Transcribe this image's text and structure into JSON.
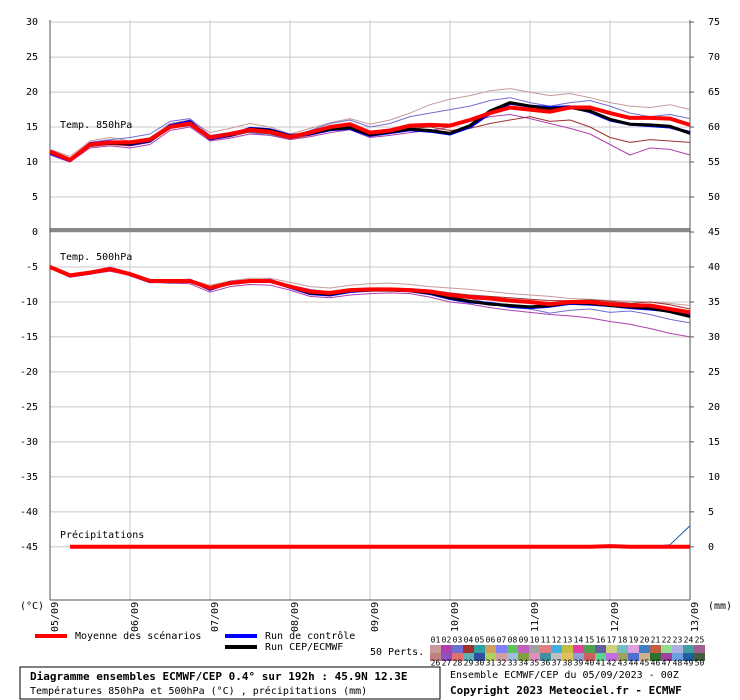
{
  "chart_data": {
    "type": "line",
    "title": "Diagramme ensembles ECMWF/CEP 0.4° sur 192h : 45.9N 12.3E",
    "subtitle": "Températures 850hPa et 500hPa (°C) , précipitations (mm)",
    "run_info": "Ensemble ECMWF/CEP du 05/09/2023 - 00Z",
    "copyright": "Copyright 2023 Meteociel.fr - ECMWF",
    "ylabel": "(°C)",
    "y2label": "(mm)",
    "grid": true,
    "x": [
      0,
      6,
      12,
      18,
      24,
      30,
      36,
      42,
      48,
      54,
      60,
      66,
      72,
      78,
      84,
      90,
      96,
      102,
      108,
      114,
      120,
      126,
      132,
      138,
      144,
      150,
      156,
      162,
      168,
      174,
      180,
      186,
      192
    ],
    "xlim": [
      0,
      192
    ],
    "xticks": [
      {
        "value": 0,
        "label": "05/09"
      },
      {
        "value": 24,
        "label": "06/09"
      },
      {
        "value": 48,
        "label": "07/09"
      },
      {
        "value": 72,
        "label": "08/09"
      },
      {
        "value": 96,
        "label": "09/09"
      },
      {
        "value": 120,
        "label": "10/09"
      },
      {
        "value": 144,
        "label": "11/09"
      },
      {
        "value": 168,
        "label": "12/09"
      },
      {
        "value": 192,
        "label": "13/09"
      }
    ],
    "ylim": [
      -52.6,
      30.3
    ],
    "yticks": [
      30,
      25,
      20,
      15,
      10,
      5,
      0,
      -5,
      -10,
      -15,
      -20,
      -25,
      -30,
      -35,
      -40,
      -45
    ],
    "y2lim": [
      -7.6,
      75.3
    ],
    "y2ticks": [
      75,
      70,
      65,
      60,
      55,
      50,
      45,
      40,
      35,
      30,
      25,
      20,
      15,
      10,
      5,
      0
    ],
    "legend": [
      {
        "name": "Moyenne des scénarios",
        "color": "#ff0000"
      },
      {
        "name": "Run de contrôle",
        "color": "#0000ff"
      },
      {
        "name": "Run CEP/ECMWF",
        "color": "#000000"
      }
    ],
    "perturbation_legend": {
      "label": "50 Perts.",
      "items": [
        {
          "name": "01",
          "color": "#c89a9a"
        },
        {
          "name": "02",
          "color": "#b040b0"
        },
        {
          "name": "03",
          "color": "#7070d0"
        },
        {
          "name": "04",
          "color": "#a03030"
        },
        {
          "name": "05",
          "color": "#30a0a0"
        },
        {
          "name": "06",
          "color": "#d0a060"
        },
        {
          "name": "07",
          "color": "#8080ff"
        },
        {
          "name": "08",
          "color": "#60c060"
        },
        {
          "name": "09",
          "color": "#c060c0"
        },
        {
          "name": "10",
          "color": "#a0a0a0"
        },
        {
          "name": "11",
          "color": "#e08080"
        },
        {
          "name": "12",
          "color": "#40b0e0"
        },
        {
          "name": "13",
          "color": "#c0c040"
        },
        {
          "name": "14",
          "color": "#e040a0"
        },
        {
          "name": "15",
          "color": "#50a050"
        },
        {
          "name": "16",
          "color": "#6060a0"
        },
        {
          "name": "17",
          "color": "#d0d080"
        },
        {
          "name": "18",
          "color": "#70c0c0"
        },
        {
          "name": "19",
          "color": "#e0a0e0"
        },
        {
          "name": "20",
          "color": "#4080c0"
        },
        {
          "name": "21",
          "color": "#c06040"
        },
        {
          "name": "22",
          "color": "#90e090"
        },
        {
          "name": "23",
          "color": "#b0b0e0"
        },
        {
          "name": "24",
          "color": "#40a0a0"
        },
        {
          "name": "25",
          "color": "#a06090"
        },
        {
          "name": "26",
          "color": "#c08080"
        },
        {
          "name": "27",
          "color": "#9050c0"
        },
        {
          "name": "28",
          "color": "#e07070"
        },
        {
          "name": "29",
          "color": "#60b0b0"
        },
        {
          "name": "30",
          "color": "#3050a0"
        },
        {
          "name": "31",
          "color": "#b0d060"
        },
        {
          "name": "32",
          "color": "#d0a0a0"
        },
        {
          "name": "33",
          "color": "#a0c0e0"
        },
        {
          "name": "34",
          "color": "#80a040"
        },
        {
          "name": "35",
          "color": "#e090c0"
        },
        {
          "name": "36",
          "color": "#4090a0"
        },
        {
          "name": "37",
          "color": "#c0c0c0"
        },
        {
          "name": "38",
          "color": "#e0c060"
        },
        {
          "name": "39",
          "color": "#90a0d0"
        },
        {
          "name": "40",
          "color": "#d06060"
        },
        {
          "name": "41",
          "color": "#60d090"
        },
        {
          "name": "42",
          "color": "#c070e0"
        },
        {
          "name": "43",
          "color": "#a0a060"
        },
        {
          "name": "44",
          "color": "#5070d0"
        },
        {
          "name": "45",
          "color": "#d0b090"
        },
        {
          "name": "46",
          "color": "#307030"
        },
        {
          "name": "47",
          "color": "#a040a0"
        },
        {
          "name": "48",
          "color": "#70a0e0"
        },
        {
          "name": "49",
          "color": "#2060a0"
        },
        {
          "name": "50",
          "color": "#406040"
        }
      ]
    },
    "panels": [
      {
        "label": "Temp. 850hPa",
        "series": [
          {
            "color": "#c89a9a",
            "width": 1,
            "values": [
              11.8,
              10.8,
              13.0,
              13.5,
              13.0,
              13.5,
              15.5,
              16.0,
              14.2,
              14.8,
              15.5,
              15.0,
              14.0,
              14.8,
              15.6,
              16.2,
              15.4,
              16.0,
              17.0,
              18.2,
              19.0,
              19.5,
              20.2,
              20.5,
              20.0,
              19.5,
              19.8,
              19.2,
              18.5,
              18.0,
              17.8,
              18.2,
              17.5
            ]
          },
          {
            "color": "#b040b0",
            "width": 1,
            "values": [
              11.0,
              10.0,
              12.0,
              12.3,
              12.0,
              12.5,
              14.5,
              15.0,
              13.0,
              13.4,
              14.0,
              13.8,
              13.2,
              13.6,
              14.2,
              14.6,
              13.5,
              13.8,
              14.2,
              14.5,
              15.0,
              15.8,
              16.5,
              16.8,
              16.2,
              15.5,
              14.8,
              14.0,
              12.5,
              11.0,
              12.0,
              11.8,
              11.0
            ]
          },
          {
            "color": "#7070d0",
            "width": 1,
            "values": [
              11.6,
              10.5,
              12.8,
              13.2,
              13.5,
              14.0,
              15.8,
              16.2,
              13.8,
              14.2,
              14.2,
              13.8,
              13.5,
              14.5,
              15.5,
              16.0,
              15.0,
              15.5,
              16.5,
              17.0,
              17.5,
              18.0,
              18.8,
              19.2,
              18.5,
              18.0,
              18.5,
              18.8,
              18.0,
              17.0,
              16.5,
              16.8,
              16.2
            ]
          },
          {
            "color": "#a03030",
            "width": 1,
            "values": [
              11.2,
              10.1,
              12.2,
              12.5,
              12.3,
              12.8,
              14.8,
              15.2,
              13.2,
              13.6,
              14.3,
              14.0,
              13.3,
              13.8,
              14.5,
              15.0,
              14.0,
              14.2,
              14.8,
              15.0,
              14.5,
              14.8,
              15.5,
              16.0,
              16.5,
              15.8,
              16.0,
              15.0,
              13.5,
              12.8,
              13.2,
              13.0,
              12.8
            ]
          },
          {
            "color": "#0000ff",
            "width": 3,
            "values": [
              11.3,
              10.2,
              12.6,
              12.9,
              12.5,
              13.0,
              15.2,
              15.8,
              13.3,
              13.8,
              14.8,
              14.6,
              13.8,
              14.0,
              14.6,
              14.8,
              13.8,
              14.2,
              14.6,
              14.4,
              14.0,
              15.0,
              17.0,
              18.4,
              18.0,
              17.8,
              17.9,
              17.2,
              16.0,
              15.4,
              15.2,
              15.0,
              14.2
            ]
          },
          {
            "color": "#000000",
            "width": 3,
            "values": [
              11.4,
              10.3,
              12.5,
              12.7,
              12.6,
              13.1,
              15.1,
              15.6,
              13.4,
              13.9,
              14.7,
              14.5,
              13.7,
              14.1,
              14.7,
              14.9,
              13.9,
              14.3,
              14.7,
              14.5,
              14.1,
              15.2,
              17.3,
              18.5,
              18.0,
              17.6,
              17.8,
              17.3,
              16.1,
              15.4,
              15.3,
              15.1,
              14.1
            ]
          },
          {
            "color": "#ff0000",
            "width": 4,
            "values": [
              11.5,
              10.3,
              12.5,
              12.8,
              12.8,
              13.2,
              15.0,
              15.5,
              13.5,
              14.0,
              14.6,
              14.3,
              13.6,
              14.2,
              15.0,
              15.4,
              14.2,
              14.5,
              15.2,
              15.3,
              15.2,
              16.0,
              17.0,
              17.8,
              17.5,
              17.2,
              17.8,
              17.8,
              17.0,
              16.3,
              16.3,
              16.2,
              15.3
            ]
          }
        ]
      },
      {
        "label": "Temp. 500hPa",
        "series": [
          {
            "color": "#c89a9a",
            "width": 1,
            "values": [
              -5.1,
              -6.0,
              -5.6,
              -5.0,
              -5.8,
              -6.8,
              -6.9,
              -6.8,
              -7.6,
              -7.0,
              -6.6,
              -6.6,
              -7.2,
              -7.8,
              -8.0,
              -7.6,
              -7.4,
              -7.3,
              -7.5,
              -7.8,
              -8.0,
              -8.2,
              -8.5,
              -8.8,
              -9.0,
              -9.2,
              -9.5,
              -9.6,
              -9.8,
              -9.9,
              -10.0,
              -10.2,
              -10.5
            ]
          },
          {
            "color": "#b040b0",
            "width": 1,
            "values": [
              -5.0,
              -6.4,
              -6.0,
              -5.6,
              -6.2,
              -7.2,
              -7.3,
              -7.4,
              -8.6,
              -7.8,
              -7.5,
              -7.6,
              -8.3,
              -9.2,
              -9.4,
              -9.0,
              -8.8,
              -8.7,
              -8.8,
              -9.3,
              -10.0,
              -10.3,
              -10.8,
              -11.2,
              -11.5,
              -11.8,
              -12.0,
              -12.3,
              -12.8,
              -13.2,
              -13.8,
              -14.5,
              -15.0
            ]
          },
          {
            "color": "#7070d0",
            "width": 1,
            "values": [
              -5.2,
              -6.1,
              -5.7,
              -5.2,
              -6.0,
              -7.0,
              -7.0,
              -7.1,
              -8.3,
              -7.4,
              -7.1,
              -7.2,
              -7.6,
              -8.2,
              -8.6,
              -8.2,
              -8.0,
              -8.0,
              -8.2,
              -8.4,
              -8.8,
              -9.5,
              -10.2,
              -10.8,
              -11.0,
              -11.6,
              -11.2,
              -11.0,
              -11.5,
              -11.3,
              -11.8,
              -12.5,
              -13.0
            ]
          },
          {
            "color": "#a03030",
            "width": 1,
            "values": [
              -4.9,
              -6.2,
              -5.8,
              -5.4,
              -6.1,
              -7.1,
              -7.2,
              -7.0,
              -7.9,
              -7.5,
              -7.2,
              -7.1,
              -8.0,
              -8.7,
              -8.8,
              -8.4,
              -8.1,
              -8.0,
              -8.1,
              -8.3,
              -8.7,
              -9.0,
              -9.2,
              -9.4,
              -9.6,
              -9.8,
              -9.8,
              -9.7,
              -9.9,
              -10.2,
              -10.0,
              -10.4,
              -11.0
            ]
          },
          {
            "color": "#0000ff",
            "width": 3,
            "values": [
              -5.0,
              -6.3,
              -5.9,
              -5.2,
              -6.1,
              -7.1,
              -7.0,
              -6.9,
              -8.2,
              -7.2,
              -7.0,
              -6.9,
              -7.9,
              -8.8,
              -9.0,
              -8.5,
              -8.3,
              -8.2,
              -8.4,
              -8.8,
              -9.5,
              -10.0,
              -10.2,
              -10.6,
              -10.8,
              -10.6,
              -10.2,
              -10.3,
              -10.5,
              -10.8,
              -11.0,
              -11.3,
              -12.0
            ]
          },
          {
            "color": "#000000",
            "width": 3,
            "values": [
              -5.0,
              -6.2,
              -5.8,
              -5.3,
              -6.0,
              -7.0,
              -7.1,
              -7.0,
              -8.1,
              -7.3,
              -7.0,
              -7.0,
              -7.8,
              -8.7,
              -8.9,
              -8.4,
              -8.3,
              -8.3,
              -8.4,
              -8.7,
              -9.4,
              -9.9,
              -10.3,
              -10.5,
              -10.7,
              -10.5,
              -10.1,
              -10.2,
              -10.5,
              -10.7,
              -10.9,
              -11.4,
              -12.1
            ]
          },
          {
            "color": "#ff0000",
            "width": 4,
            "values": [
              -5.0,
              -6.2,
              -5.8,
              -5.3,
              -6.0,
              -7.0,
              -7.0,
              -7.0,
              -8.0,
              -7.3,
              -7.0,
              -7.0,
              -7.8,
              -8.5,
              -8.7,
              -8.3,
              -8.2,
              -8.2,
              -8.3,
              -8.5,
              -9.0,
              -9.3,
              -9.5,
              -9.8,
              -10.0,
              -10.3,
              -10.0,
              -10.0,
              -10.3,
              -10.5,
              -10.5,
              -11.0,
              -11.5
            ]
          }
        ]
      },
      {
        "label": "Précipitations",
        "series": [
          {
            "color": "#2060a0",
            "width": 1,
            "axis": "y2",
            "values": [
              null,
              0,
              0,
              0,
              0,
              0,
              0,
              0,
              0,
              0,
              0,
              0,
              0,
              0,
              0,
              0,
              0,
              0,
              0,
              0,
              0,
              0,
              0,
              0,
              0,
              0,
              0,
              0,
              0,
              0,
              0,
              0.3,
              3.0
            ]
          },
          {
            "color": "#ff0000",
            "width": 4,
            "axis": "y2",
            "values": [
              null,
              0,
              0,
              0,
              0,
              0,
              0,
              0,
              0,
              0,
              0,
              0,
              0,
              0,
              0,
              0,
              0,
              0,
              0,
              0,
              0,
              0,
              0,
              0,
              0,
              0,
              0,
              0,
              0.1,
              0,
              0,
              0,
              0
            ]
          }
        ]
      }
    ]
  }
}
